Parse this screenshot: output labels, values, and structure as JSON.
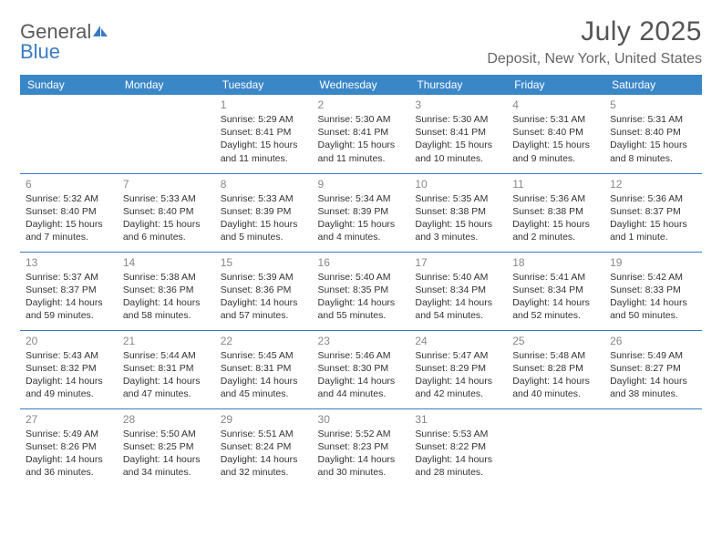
{
  "logo": {
    "word1": "General",
    "word2": "Blue"
  },
  "title": "July 2025",
  "location": "Deposit, New York, United States",
  "colors": {
    "header_bg": "#3a87c8",
    "header_text": "#ffffff",
    "rule": "#3a7cc4",
    "daynum": "#888888",
    "body_text": "#333333",
    "title_text": "#555555",
    "location_text": "#666666",
    "logo_gray": "#5a5a5a",
    "logo_blue": "#3a7cc4",
    "page_bg": "#ffffff"
  },
  "typography": {
    "title_fontsize": 30,
    "location_fontsize": 16,
    "weekday_fontsize": 12,
    "daynum_fontsize": 12,
    "cell_fontsize": 10.5,
    "font_family": "Arial"
  },
  "weekdays": [
    "Sunday",
    "Monday",
    "Tuesday",
    "Wednesday",
    "Thursday",
    "Friday",
    "Saturday"
  ],
  "labels": {
    "sunrise": "Sunrise:",
    "sunset": "Sunset:",
    "daylight": "Daylight:"
  },
  "grid": [
    [
      null,
      null,
      {
        "n": "1",
        "sr": "5:29 AM",
        "ss": "8:41 PM",
        "dl": "15 hours and 11 minutes."
      },
      {
        "n": "2",
        "sr": "5:30 AM",
        "ss": "8:41 PM",
        "dl": "15 hours and 11 minutes."
      },
      {
        "n": "3",
        "sr": "5:30 AM",
        "ss": "8:41 PM",
        "dl": "15 hours and 10 minutes."
      },
      {
        "n": "4",
        "sr": "5:31 AM",
        "ss": "8:40 PM",
        "dl": "15 hours and 9 minutes."
      },
      {
        "n": "5",
        "sr": "5:31 AM",
        "ss": "8:40 PM",
        "dl": "15 hours and 8 minutes."
      }
    ],
    [
      {
        "n": "6",
        "sr": "5:32 AM",
        "ss": "8:40 PM",
        "dl": "15 hours and 7 minutes."
      },
      {
        "n": "7",
        "sr": "5:33 AM",
        "ss": "8:40 PM",
        "dl": "15 hours and 6 minutes."
      },
      {
        "n": "8",
        "sr": "5:33 AM",
        "ss": "8:39 PM",
        "dl": "15 hours and 5 minutes."
      },
      {
        "n": "9",
        "sr": "5:34 AM",
        "ss": "8:39 PM",
        "dl": "15 hours and 4 minutes."
      },
      {
        "n": "10",
        "sr": "5:35 AM",
        "ss": "8:38 PM",
        "dl": "15 hours and 3 minutes."
      },
      {
        "n": "11",
        "sr": "5:36 AM",
        "ss": "8:38 PM",
        "dl": "15 hours and 2 minutes."
      },
      {
        "n": "12",
        "sr": "5:36 AM",
        "ss": "8:37 PM",
        "dl": "15 hours and 1 minute."
      }
    ],
    [
      {
        "n": "13",
        "sr": "5:37 AM",
        "ss": "8:37 PM",
        "dl": "14 hours and 59 minutes."
      },
      {
        "n": "14",
        "sr": "5:38 AM",
        "ss": "8:36 PM",
        "dl": "14 hours and 58 minutes."
      },
      {
        "n": "15",
        "sr": "5:39 AM",
        "ss": "8:36 PM",
        "dl": "14 hours and 57 minutes."
      },
      {
        "n": "16",
        "sr": "5:40 AM",
        "ss": "8:35 PM",
        "dl": "14 hours and 55 minutes."
      },
      {
        "n": "17",
        "sr": "5:40 AM",
        "ss": "8:34 PM",
        "dl": "14 hours and 54 minutes."
      },
      {
        "n": "18",
        "sr": "5:41 AM",
        "ss": "8:34 PM",
        "dl": "14 hours and 52 minutes."
      },
      {
        "n": "19",
        "sr": "5:42 AM",
        "ss": "8:33 PM",
        "dl": "14 hours and 50 minutes."
      }
    ],
    [
      {
        "n": "20",
        "sr": "5:43 AM",
        "ss": "8:32 PM",
        "dl": "14 hours and 49 minutes."
      },
      {
        "n": "21",
        "sr": "5:44 AM",
        "ss": "8:31 PM",
        "dl": "14 hours and 47 minutes."
      },
      {
        "n": "22",
        "sr": "5:45 AM",
        "ss": "8:31 PM",
        "dl": "14 hours and 45 minutes."
      },
      {
        "n": "23",
        "sr": "5:46 AM",
        "ss": "8:30 PM",
        "dl": "14 hours and 44 minutes."
      },
      {
        "n": "24",
        "sr": "5:47 AM",
        "ss": "8:29 PM",
        "dl": "14 hours and 42 minutes."
      },
      {
        "n": "25",
        "sr": "5:48 AM",
        "ss": "8:28 PM",
        "dl": "14 hours and 40 minutes."
      },
      {
        "n": "26",
        "sr": "5:49 AM",
        "ss": "8:27 PM",
        "dl": "14 hours and 38 minutes."
      }
    ],
    [
      {
        "n": "27",
        "sr": "5:49 AM",
        "ss": "8:26 PM",
        "dl": "14 hours and 36 minutes."
      },
      {
        "n": "28",
        "sr": "5:50 AM",
        "ss": "8:25 PM",
        "dl": "14 hours and 34 minutes."
      },
      {
        "n": "29",
        "sr": "5:51 AM",
        "ss": "8:24 PM",
        "dl": "14 hours and 32 minutes."
      },
      {
        "n": "30",
        "sr": "5:52 AM",
        "ss": "8:23 PM",
        "dl": "14 hours and 30 minutes."
      },
      {
        "n": "31",
        "sr": "5:53 AM",
        "ss": "8:22 PM",
        "dl": "14 hours and 28 minutes."
      },
      null,
      null
    ]
  ]
}
